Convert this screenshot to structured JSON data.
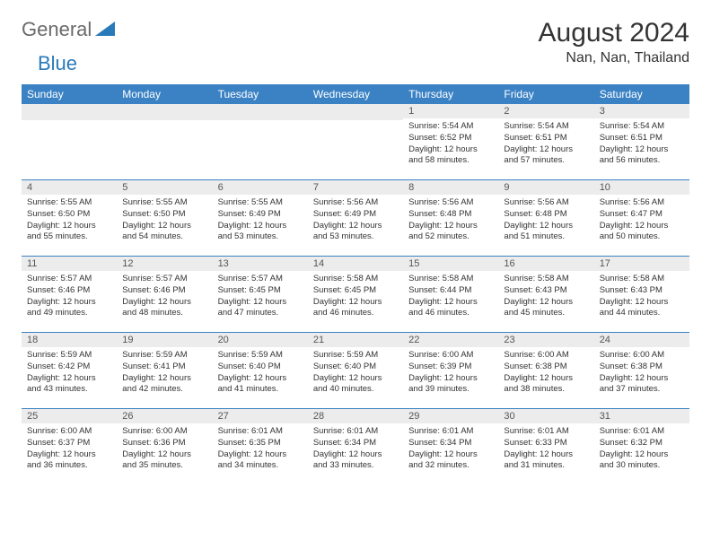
{
  "logo": {
    "general": "General",
    "blue": "Blue"
  },
  "title": "August 2024",
  "location": "Nan, Nan, Thailand",
  "colors": {
    "header_bg": "#3b82c4",
    "header_text": "#ffffff",
    "daynum_bg": "#ececec",
    "border": "#3b82c4",
    "text": "#333333",
    "logo_gray": "#6a6a6a",
    "logo_blue": "#2a7ab9"
  },
  "day_headers": [
    "Sunday",
    "Monday",
    "Tuesday",
    "Wednesday",
    "Thursday",
    "Friday",
    "Saturday"
  ],
  "weeks": [
    [
      {
        "n": "",
        "sr": "",
        "ss": "",
        "dl": ""
      },
      {
        "n": "",
        "sr": "",
        "ss": "",
        "dl": ""
      },
      {
        "n": "",
        "sr": "",
        "ss": "",
        "dl": ""
      },
      {
        "n": "",
        "sr": "",
        "ss": "",
        "dl": ""
      },
      {
        "n": "1",
        "sr": "Sunrise: 5:54 AM",
        "ss": "Sunset: 6:52 PM",
        "dl": "Daylight: 12 hours and 58 minutes."
      },
      {
        "n": "2",
        "sr": "Sunrise: 5:54 AM",
        "ss": "Sunset: 6:51 PM",
        "dl": "Daylight: 12 hours and 57 minutes."
      },
      {
        "n": "3",
        "sr": "Sunrise: 5:54 AM",
        "ss": "Sunset: 6:51 PM",
        "dl": "Daylight: 12 hours and 56 minutes."
      }
    ],
    [
      {
        "n": "4",
        "sr": "Sunrise: 5:55 AM",
        "ss": "Sunset: 6:50 PM",
        "dl": "Daylight: 12 hours and 55 minutes."
      },
      {
        "n": "5",
        "sr": "Sunrise: 5:55 AM",
        "ss": "Sunset: 6:50 PM",
        "dl": "Daylight: 12 hours and 54 minutes."
      },
      {
        "n": "6",
        "sr": "Sunrise: 5:55 AM",
        "ss": "Sunset: 6:49 PM",
        "dl": "Daylight: 12 hours and 53 minutes."
      },
      {
        "n": "7",
        "sr": "Sunrise: 5:56 AM",
        "ss": "Sunset: 6:49 PM",
        "dl": "Daylight: 12 hours and 53 minutes."
      },
      {
        "n": "8",
        "sr": "Sunrise: 5:56 AM",
        "ss": "Sunset: 6:48 PM",
        "dl": "Daylight: 12 hours and 52 minutes."
      },
      {
        "n": "9",
        "sr": "Sunrise: 5:56 AM",
        "ss": "Sunset: 6:48 PM",
        "dl": "Daylight: 12 hours and 51 minutes."
      },
      {
        "n": "10",
        "sr": "Sunrise: 5:56 AM",
        "ss": "Sunset: 6:47 PM",
        "dl": "Daylight: 12 hours and 50 minutes."
      }
    ],
    [
      {
        "n": "11",
        "sr": "Sunrise: 5:57 AM",
        "ss": "Sunset: 6:46 PM",
        "dl": "Daylight: 12 hours and 49 minutes."
      },
      {
        "n": "12",
        "sr": "Sunrise: 5:57 AM",
        "ss": "Sunset: 6:46 PM",
        "dl": "Daylight: 12 hours and 48 minutes."
      },
      {
        "n": "13",
        "sr": "Sunrise: 5:57 AM",
        "ss": "Sunset: 6:45 PM",
        "dl": "Daylight: 12 hours and 47 minutes."
      },
      {
        "n": "14",
        "sr": "Sunrise: 5:58 AM",
        "ss": "Sunset: 6:45 PM",
        "dl": "Daylight: 12 hours and 46 minutes."
      },
      {
        "n": "15",
        "sr": "Sunrise: 5:58 AM",
        "ss": "Sunset: 6:44 PM",
        "dl": "Daylight: 12 hours and 46 minutes."
      },
      {
        "n": "16",
        "sr": "Sunrise: 5:58 AM",
        "ss": "Sunset: 6:43 PM",
        "dl": "Daylight: 12 hours and 45 minutes."
      },
      {
        "n": "17",
        "sr": "Sunrise: 5:58 AM",
        "ss": "Sunset: 6:43 PM",
        "dl": "Daylight: 12 hours and 44 minutes."
      }
    ],
    [
      {
        "n": "18",
        "sr": "Sunrise: 5:59 AM",
        "ss": "Sunset: 6:42 PM",
        "dl": "Daylight: 12 hours and 43 minutes."
      },
      {
        "n": "19",
        "sr": "Sunrise: 5:59 AM",
        "ss": "Sunset: 6:41 PM",
        "dl": "Daylight: 12 hours and 42 minutes."
      },
      {
        "n": "20",
        "sr": "Sunrise: 5:59 AM",
        "ss": "Sunset: 6:40 PM",
        "dl": "Daylight: 12 hours and 41 minutes."
      },
      {
        "n": "21",
        "sr": "Sunrise: 5:59 AM",
        "ss": "Sunset: 6:40 PM",
        "dl": "Daylight: 12 hours and 40 minutes."
      },
      {
        "n": "22",
        "sr": "Sunrise: 6:00 AM",
        "ss": "Sunset: 6:39 PM",
        "dl": "Daylight: 12 hours and 39 minutes."
      },
      {
        "n": "23",
        "sr": "Sunrise: 6:00 AM",
        "ss": "Sunset: 6:38 PM",
        "dl": "Daylight: 12 hours and 38 minutes."
      },
      {
        "n": "24",
        "sr": "Sunrise: 6:00 AM",
        "ss": "Sunset: 6:38 PM",
        "dl": "Daylight: 12 hours and 37 minutes."
      }
    ],
    [
      {
        "n": "25",
        "sr": "Sunrise: 6:00 AM",
        "ss": "Sunset: 6:37 PM",
        "dl": "Daylight: 12 hours and 36 minutes."
      },
      {
        "n": "26",
        "sr": "Sunrise: 6:00 AM",
        "ss": "Sunset: 6:36 PM",
        "dl": "Daylight: 12 hours and 35 minutes."
      },
      {
        "n": "27",
        "sr": "Sunrise: 6:01 AM",
        "ss": "Sunset: 6:35 PM",
        "dl": "Daylight: 12 hours and 34 minutes."
      },
      {
        "n": "28",
        "sr": "Sunrise: 6:01 AM",
        "ss": "Sunset: 6:34 PM",
        "dl": "Daylight: 12 hours and 33 minutes."
      },
      {
        "n": "29",
        "sr": "Sunrise: 6:01 AM",
        "ss": "Sunset: 6:34 PM",
        "dl": "Daylight: 12 hours and 32 minutes."
      },
      {
        "n": "30",
        "sr": "Sunrise: 6:01 AM",
        "ss": "Sunset: 6:33 PM",
        "dl": "Daylight: 12 hours and 31 minutes."
      },
      {
        "n": "31",
        "sr": "Sunrise: 6:01 AM",
        "ss": "Sunset: 6:32 PM",
        "dl": "Daylight: 12 hours and 30 minutes."
      }
    ]
  ]
}
